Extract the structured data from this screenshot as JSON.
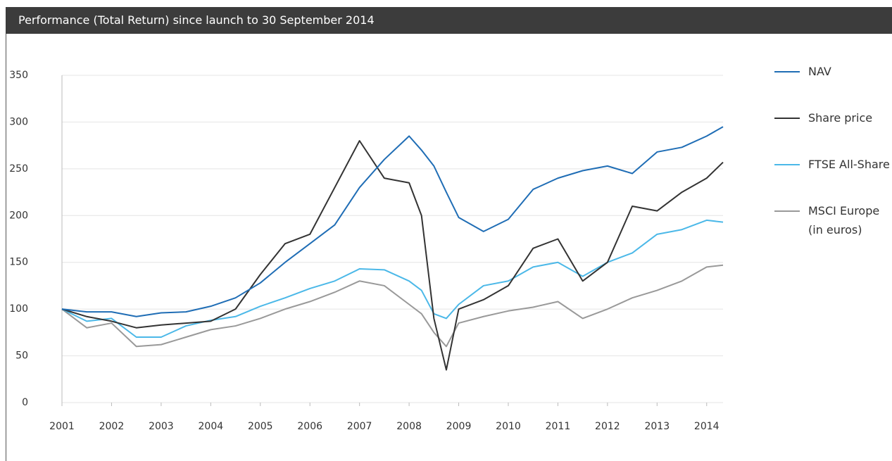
{
  "chart_data": {
    "type": "line",
    "title": "Performance (Total Return) since launch to 30 September 2014",
    "x": [
      2001,
      2001.5,
      2002,
      2002.5,
      2003,
      2003.5,
      2004,
      2004.5,
      2005,
      2005.5,
      2006,
      2006.5,
      2007,
      2007.5,
      2008,
      2008.25,
      2008.5,
      2008.75,
      2009,
      2009.5,
      2010,
      2010.5,
      2011,
      2011.5,
      2012,
      2012.5,
      2013,
      2013.5,
      2014,
      2014.33
    ],
    "series": [
      {
        "name": "NAV",
        "color": "#1f6db5",
        "values": [
          100,
          97,
          97,
          92,
          96,
          97,
          103,
          112,
          128,
          150,
          170,
          190,
          230,
          260,
          285,
          270,
          253,
          225,
          198,
          183,
          196,
          228,
          240,
          248,
          253,
          245,
          268,
          273,
          285,
          295
        ]
      },
      {
        "name": "Share price",
        "color": "#333333",
        "values": [
          100,
          92,
          87,
          80,
          83,
          85,
          87,
          100,
          137,
          170,
          180,
          230,
          280,
          240,
          235,
          200,
          90,
          35,
          100,
          110,
          125,
          165,
          175,
          130,
          150,
          210,
          205,
          225,
          240,
          257
        ]
      },
      {
        "name": "FTSE All-Share",
        "color": "#4bb8e8",
        "values": [
          100,
          87,
          90,
          70,
          70,
          82,
          88,
          92,
          103,
          112,
          122,
          130,
          143,
          142,
          130,
          120,
          95,
          90,
          105,
          125,
          130,
          145,
          150,
          135,
          150,
          160,
          180,
          185,
          195,
          193
        ]
      },
      {
        "name": "MSCI Europe (in euros)",
        "color": "#999999",
        "values": [
          100,
          80,
          85,
          60,
          62,
          70,
          78,
          82,
          90,
          100,
          108,
          118,
          130,
          125,
          105,
          95,
          75,
          60,
          85,
          92,
          98,
          102,
          108,
          90,
          100,
          112,
          120,
          130,
          145,
          147
        ]
      }
    ],
    "xlim": [
      2001,
      2014.33
    ],
    "xticks": [
      2001,
      2002,
      2003,
      2004,
      2005,
      2006,
      2007,
      2008,
      2009,
      2010,
      2011,
      2012,
      2013,
      2014
    ],
    "ylim": [
      0,
      350
    ],
    "yticks": [
      0,
      50,
      100,
      150,
      200,
      250,
      300,
      350
    ],
    "grid": true
  }
}
